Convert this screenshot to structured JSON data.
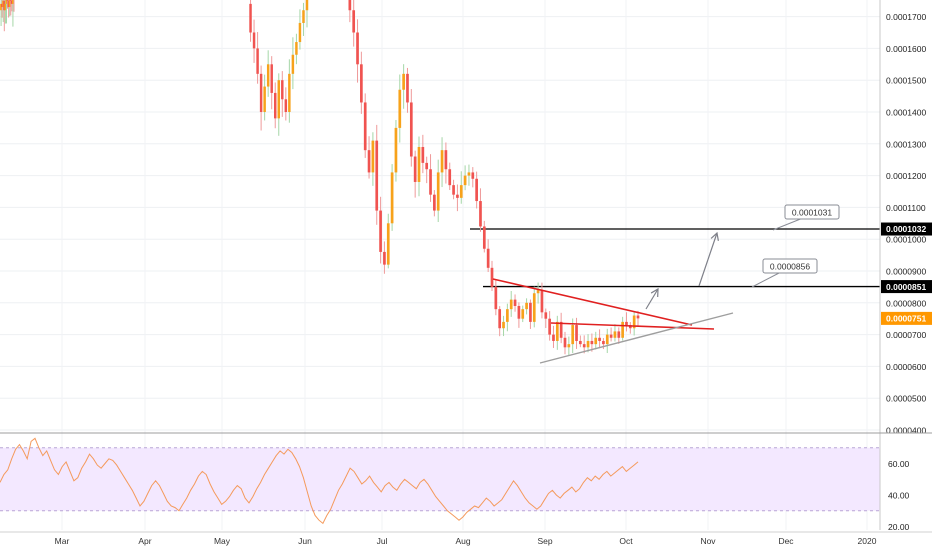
{
  "colors": {
    "up": "#f7a21b",
    "down": "#f05350",
    "wick_up": "#a5d6a7",
    "wick_down": "#ef9a9a",
    "level_line": "#000000",
    "trend_line": "#e02020",
    "support_line": "#9e9e9e",
    "rsi_line": "#f49a5c",
    "rsi_band": "#f3e8ff",
    "price_tag": "#ff9800"
  },
  "chart_data": [
    {
      "type": "candlestick",
      "title": "",
      "xlabel": "",
      "ylabel": "",
      "x_ticks": [
        "Mar",
        "Apr",
        "May",
        "Jun",
        "Jul",
        "Aug",
        "Sep",
        "Oct",
        "Nov",
        "Dec",
        "2020"
      ],
      "y_ticks": [
        "0.0001700",
        "0.0001600",
        "0.0001500",
        "0.0001400",
        "0.0001300",
        "0.0001200",
        "0.0001100",
        "0.0001000",
        "0.0000900",
        "0.0000800",
        "0.0000700",
        "0.0000600",
        "0.0000500",
        "0.0000400"
      ],
      "ylim": [
        3.95e-05,
        0.0001755
      ],
      "grid": true,
      "price_tags": [
        {
          "label": "0.0001032",
          "value": 0.0001032,
          "style": "dark"
        },
        {
          "label": "0.0000851",
          "value": 8.51e-05,
          "style": "dark"
        },
        {
          "label": "0.0000751",
          "value": 7.51e-05,
          "style": "current"
        }
      ],
      "callouts": [
        {
          "label": "0.0001031",
          "value": 0.0001031
        },
        {
          "label": "0.0000856",
          "value": 8.56e-05
        }
      ],
      "series": [
        {
          "segment": "Feb",
          "values": [
            0.000172,
            0.000174,
            0.000173,
            0.000175,
            0.000172,
            0.000174,
            0.000176,
            0.000175,
            0.000173,
            0.000176,
            0.000175,
            0.000174,
            0.000177,
            0.000176
          ]
        },
        {
          "segment": "May-Jun",
          "values": [
            0.000174,
            0.000165,
            0.00016,
            0.000152,
            0.00014,
            0.000148,
            0.000155,
            0.000146,
            0.000138,
            0.00015,
            0.000144,
            0.00014,
            0.000152,
            0.000158,
            0.000162,
            0.000168,
            0.000172,
            0.000176
          ]
        },
        {
          "segment": "Jun-Oct",
          "values": [
            0.000176,
            0.000172,
            0.000165,
            0.000155,
            0.000143,
            0.000128,
            0.000121,
            0.000131,
            0.000109,
            9.6e-05,
            9.2e-05,
            0.000105,
            0.000121,
            0.000135,
            0.000147,
            0.000152,
            0.000143,
            0.000126,
            0.000118,
            0.000129,
            0.000124,
            0.000122,
            0.000114,
            0.000109,
            0.000121,
            0.000128,
            0.000122,
            0.000117,
            0.000114,
            0.000113,
            0.000117,
            0.00012,
            0.000121,
            0.000119,
            0.000112,
            0.000104,
            9.7e-05,
            9.1e-05,
            8.5e-05,
            7.8e-05,
            7.2e-05,
            7.4e-05,
            7.8e-05,
            8.1e-05,
            7.9e-05,
            7.5e-05,
            7.8e-05,
            8e-05,
            7.4e-05,
            8.3e-05,
            8.4e-05,
            7.7e-05,
            7.5e-05,
            7e-05,
            6.8e-05,
            7.4e-05,
            6.9e-05,
            6.6e-05,
            6.7e-05,
            7.3e-05,
            6.8e-05,
            6.7e-05,
            6.6e-05,
            6.8e-05,
            6.7e-05,
            6.9e-05,
            6.8e-05,
            6.7e-05,
            7e-05,
            6.9e-05,
            7.1e-05,
            6.9e-05,
            7.4e-05,
            7.3e-05,
            7.2e-05,
            7.6e-05,
            7.51e-05
          ]
        }
      ]
    },
    {
      "type": "line",
      "title": "",
      "xlabel": "",
      "ylabel": "",
      "y_ticks": [
        "60.00",
        "40.00",
        "20.00"
      ],
      "ylim": [
        18,
        77
      ],
      "band": [
        30,
        70
      ],
      "series": [
        {
          "values": [
            48,
            53,
            56,
            63,
            69,
            72,
            68,
            63,
            74,
            76,
            70,
            65,
            68,
            62,
            56,
            53,
            58,
            61,
            55,
            49,
            51,
            57,
            61,
            66,
            63,
            59,
            57,
            60,
            63,
            62,
            59,
            55,
            51,
            47,
            43,
            38,
            33,
            36,
            41,
            46,
            49,
            46,
            41,
            36,
            33,
            32,
            30,
            34,
            38,
            43,
            47,
            52,
            55,
            53,
            47,
            42,
            38,
            34,
            36,
            39,
            43,
            46,
            44,
            38,
            35,
            39,
            44,
            48,
            53,
            57,
            61,
            65,
            68,
            66,
            69,
            67,
            63,
            58,
            51,
            42,
            33,
            27,
            24,
            22,
            27,
            31,
            37,
            43,
            47,
            52,
            57,
            55,
            51,
            47,
            49,
            52,
            48,
            45,
            42,
            46,
            48,
            45,
            43,
            47,
            50,
            48,
            46,
            44,
            48,
            50,
            47,
            43,
            39,
            36,
            33,
            30,
            28,
            26,
            24,
            26,
            29,
            31,
            33,
            32,
            35,
            38,
            36,
            33,
            35,
            37,
            41,
            45,
            49,
            46,
            42,
            38,
            35,
            33,
            31,
            33,
            37,
            41,
            43,
            40,
            38,
            41,
            43,
            45,
            42,
            44,
            48,
            51,
            49,
            52,
            50,
            53,
            55,
            52,
            54,
            56,
            58,
            55,
            57,
            59,
            61
          ]
        }
      ]
    }
  ]
}
